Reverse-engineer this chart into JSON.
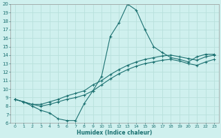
{
  "xlabel": "Humidex (Indice chaleur)",
  "bg_color": "#cff0ee",
  "grid_color": "#b8e0dc",
  "line_color": "#1a7070",
  "xlim": [
    -0.5,
    23.5
  ],
  "ylim": [
    6,
    20
  ],
  "xticks": [
    0,
    1,
    2,
    3,
    4,
    5,
    6,
    7,
    8,
    9,
    10,
    11,
    12,
    13,
    14,
    15,
    16,
    17,
    18,
    19,
    20,
    21,
    22,
    23
  ],
  "yticks": [
    6,
    7,
    8,
    9,
    10,
    11,
    12,
    13,
    14,
    15,
    16,
    17,
    18,
    19,
    20
  ],
  "curve_peak": [
    8.8,
    8.5,
    8.0,
    7.5,
    7.2,
    6.5,
    6.3,
    6.3,
    8.3,
    9.8,
    11.5,
    16.2,
    17.8,
    20.0,
    19.3,
    17.0,
    15.0,
    14.3,
    13.7,
    13.5,
    13.2,
    13.8,
    14.1,
    14.1
  ],
  "curve_upper": [
    8.8,
    8.5,
    8.2,
    8.2,
    8.5,
    8.8,
    9.2,
    9.5,
    9.8,
    10.5,
    11.0,
    11.7,
    12.3,
    12.8,
    13.2,
    13.5,
    13.7,
    13.9,
    14.0,
    13.8,
    13.6,
    13.4,
    13.8,
    14.0
  ],
  "curve_lower": [
    8.8,
    8.5,
    8.2,
    8.0,
    8.2,
    8.5,
    8.8,
    9.0,
    9.3,
    9.8,
    10.5,
    11.2,
    11.8,
    12.3,
    12.7,
    13.0,
    13.2,
    13.4,
    13.5,
    13.3,
    13.0,
    12.8,
    13.2,
    13.5
  ]
}
